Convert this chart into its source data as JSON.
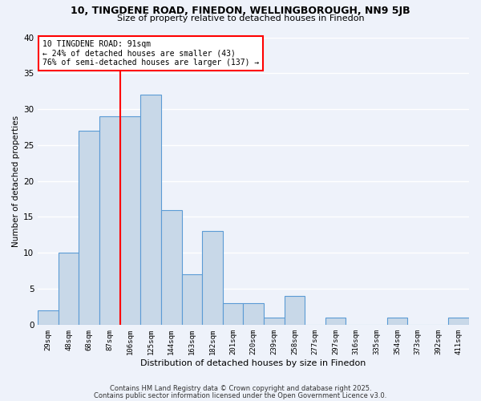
{
  "title1": "10, TINGDENE ROAD, FINEDON, WELLINGBOROUGH, NN9 5JB",
  "title2": "Size of property relative to detached houses in Finedon",
  "xlabel": "Distribution of detached houses by size in Finedon",
  "ylabel": "Number of detached properties",
  "bar_labels": [
    "29sqm",
    "48sqm",
    "68sqm",
    "87sqm",
    "106sqm",
    "125sqm",
    "144sqm",
    "163sqm",
    "182sqm",
    "201sqm",
    "220sqm",
    "239sqm",
    "258sqm",
    "277sqm",
    "297sqm",
    "316sqm",
    "335sqm",
    "354sqm",
    "373sqm",
    "392sqm",
    "411sqm"
  ],
  "bar_values": [
    2,
    10,
    27,
    29,
    29,
    32,
    16,
    7,
    13,
    3,
    3,
    1,
    4,
    0,
    1,
    0,
    0,
    1,
    0,
    0,
    1
  ],
  "bar_color": "#c8d8e8",
  "bar_edgecolor": "#5b9bd5",
  "vline_color": "red",
  "annotation_line1": "10 TINGDENE ROAD: 91sqm",
  "annotation_line2": "← 24% of detached houses are smaller (43)",
  "annotation_line3": "76% of semi-detached houses are larger (137) →",
  "annotation_box_edgecolor": "red",
  "annotation_box_facecolor": "white",
  "footer1": "Contains HM Land Registry data © Crown copyright and database right 2025.",
  "footer2": "Contains public sector information licensed under the Open Government Licence v3.0.",
  "bg_color": "#eef2fa",
  "ylim": [
    0,
    40
  ],
  "yticks": [
    0,
    5,
    10,
    15,
    20,
    25,
    30,
    35,
    40
  ]
}
